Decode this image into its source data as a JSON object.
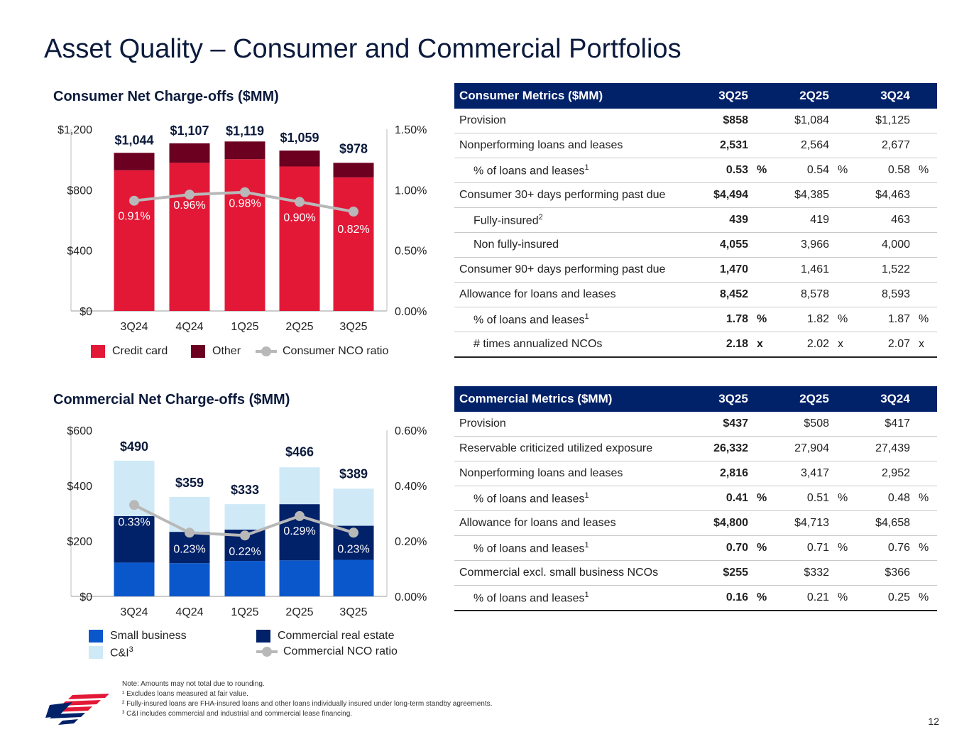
{
  "title": "Asset Quality – Consumer and Commercial Portfolios",
  "colors": {
    "credit_card": "#e31837",
    "other": "#6b0020",
    "nco_line": "#b8b8b8",
    "small_business": "#0a57cc",
    "commercial_real_estate": "#012169",
    "c_and_i": "#cfe9f7",
    "table_header": "#012169"
  },
  "chart_data": [
    {
      "type": "bar",
      "stacked": true,
      "title": "Consumer Net Charge-offs ($MM)",
      "categories": [
        "3Q24",
        "4Q24",
        "1Q25",
        "2Q25",
        "3Q25"
      ],
      "series": [
        {
          "name": "Credit card",
          "values": [
            929,
            978,
            1002,
            954,
            882
          ]
        },
        {
          "name": "Other",
          "values": [
            115,
            129,
            117,
            105,
            96
          ]
        }
      ],
      "totals": [
        "$1,044",
        "$1,107",
        "$1,119",
        "$1,059",
        "$978"
      ],
      "line_series": {
        "name": "Consumer NCO ratio",
        "values": [
          0.91,
          0.96,
          0.98,
          0.9,
          0.82
        ],
        "labels": [
          "0.91%",
          "0.96%",
          "0.98%",
          "0.90%",
          "0.82%"
        ]
      },
      "y_ticks_left": [
        "$0",
        "$400",
        "$800",
        "$1,200"
      ],
      "y_ticks_right": [
        "0.00%",
        "0.50%",
        "1.00%",
        "1.50%"
      ],
      "ylim": [
        0,
        1200
      ],
      "ylim_right": [
        0,
        1.5
      ],
      "legend": [
        {
          "name": "Credit card",
          "kind": "swatch",
          "color": "#e31837"
        },
        {
          "name": "Other",
          "kind": "swatch",
          "color": "#6b0020"
        },
        {
          "name": "Consumer NCO ratio",
          "kind": "line"
        }
      ]
    },
    {
      "type": "bar",
      "stacked": true,
      "title": "Commercial Net Charge-offs ($MM)",
      "categories": [
        "3Q24",
        "4Q24",
        "1Q25",
        "2Q25",
        "3Q25"
      ],
      "series": [
        {
          "name": "Small business",
          "values": [
            122,
            120,
            128,
            130,
            132
          ]
        },
        {
          "name": "Commercial real estate",
          "values": [
            168,
            113,
            113,
            203,
            123
          ]
        },
        {
          "name": "C&I",
          "values": [
            200,
            126,
            92,
            133,
            134
          ]
        }
      ],
      "totals": [
        "$490",
        "$359",
        "$333",
        "$466",
        "$389"
      ],
      "line_series": {
        "name": "Commercial NCO ratio",
        "values": [
          0.33,
          0.23,
          0.22,
          0.29,
          0.23
        ],
        "labels": [
          "0.33%",
          "0.23%",
          "0.22%",
          "0.29%",
          "0.23%"
        ]
      },
      "y_ticks_left": [
        "$0",
        "$200",
        "$400",
        "$600"
      ],
      "y_ticks_right": [
        "0.00%",
        "0.20%",
        "0.40%",
        "0.60%"
      ],
      "ylim": [
        0,
        600
      ],
      "ylim_right": [
        0,
        0.6
      ],
      "legend": [
        {
          "name": "Small business",
          "kind": "swatch",
          "color": "#0a57cc"
        },
        {
          "name": "Commercial real estate",
          "kind": "swatch",
          "color": "#012169"
        },
        {
          "name": "C&I",
          "kind": "swatch",
          "color": "#cfe9f7",
          "sup": "3"
        },
        {
          "name": "Commercial NCO ratio",
          "kind": "line"
        }
      ]
    }
  ],
  "consumer_table": {
    "header": [
      "Consumer Metrics ($MM)",
      "3Q25",
      "2Q25",
      "3Q24"
    ],
    "rows": [
      {
        "label": "Provision",
        "v": [
          "$858",
          "$1,084",
          "$1,125"
        ],
        "u": [
          "",
          "",
          ""
        ]
      },
      {
        "label": "Nonperforming loans and leases",
        "v": [
          "2,531",
          "2,564",
          "2,677"
        ],
        "u": [
          "",
          "",
          ""
        ]
      },
      {
        "label": "% of loans and leases",
        "sup": "1",
        "indent": true,
        "v": [
          "0.53",
          "0.54",
          "0.58"
        ],
        "u": [
          "%",
          "%",
          "%"
        ]
      },
      {
        "label": "Consumer 30+ days performing past due",
        "v": [
          "$4,494",
          "$4,385",
          "$4,463"
        ],
        "u": [
          "",
          "",
          ""
        ]
      },
      {
        "label": "Fully-insured",
        "sup": "2",
        "indent": true,
        "v": [
          "439",
          "419",
          "463"
        ],
        "u": [
          "",
          "",
          ""
        ]
      },
      {
        "label": "Non fully-insured",
        "indent": true,
        "v": [
          "4,055",
          "3,966",
          "4,000"
        ],
        "u": [
          "",
          "",
          ""
        ]
      },
      {
        "label": "Consumer 90+ days performing past due",
        "v": [
          "1,470",
          "1,461",
          "1,522"
        ],
        "u": [
          "",
          "",
          ""
        ]
      },
      {
        "label": "Allowance for loans and leases",
        "v": [
          "8,452",
          "8,578",
          "8,593"
        ],
        "u": [
          "",
          "",
          ""
        ]
      },
      {
        "label": "% of loans and leases",
        "sup": "1",
        "indent": true,
        "v": [
          "1.78",
          "1.82",
          "1.87"
        ],
        "u": [
          "%",
          "%",
          "%"
        ]
      },
      {
        "label": "# times annualized NCOs",
        "indent": true,
        "v": [
          "2.18",
          "2.02",
          "2.07"
        ],
        "u": [
          "x",
          "x",
          "x"
        ]
      }
    ]
  },
  "commercial_table": {
    "header": [
      "Commercial Metrics ($MM)",
      "3Q25",
      "2Q25",
      "3Q24"
    ],
    "rows": [
      {
        "label": "Provision",
        "v": [
          "$437",
          "$508",
          "$417"
        ],
        "u": [
          "",
          "",
          ""
        ]
      },
      {
        "label": "Reservable criticized utilized exposure",
        "v": [
          "26,332",
          "27,904",
          "27,439"
        ],
        "u": [
          "",
          "",
          ""
        ]
      },
      {
        "label": "Nonperforming loans and leases",
        "v": [
          "2,816",
          "3,417",
          "2,952"
        ],
        "u": [
          "",
          "",
          ""
        ]
      },
      {
        "label": "% of loans and leases",
        "sup": "1",
        "indent": true,
        "v": [
          "0.41",
          "0.51",
          "0.48"
        ],
        "u": [
          "%",
          "%",
          "%"
        ]
      },
      {
        "label": "Allowance for loans and leases",
        "v": [
          "$4,800",
          "$4,713",
          "$4,658"
        ],
        "u": [
          "",
          "",
          ""
        ]
      },
      {
        "label": "% of loans and leases",
        "sup": "1",
        "indent": true,
        "v": [
          "0.70",
          "0.71",
          "0.76"
        ],
        "u": [
          "%",
          "%",
          "%"
        ]
      },
      {
        "label": "Commercial excl. small business NCOs",
        "v": [
          "$255",
          "$332",
          "$366"
        ],
        "u": [
          "",
          "",
          ""
        ]
      },
      {
        "label": "% of loans and leases",
        "sup": "1",
        "indent": true,
        "v": [
          "0.16",
          "0.21",
          "0.25"
        ],
        "u": [
          "%",
          "%",
          "%"
        ]
      }
    ]
  },
  "footnotes": [
    "Note: Amounts may not total due to rounding.",
    "¹ Excludes loans measured at fair value.",
    "² Fully-insured loans are FHA-insured loans and other loans individually insured under long-term standby agreements.",
    "³ C&I includes commercial and industrial and commercial lease financing."
  ],
  "page_number": "12"
}
